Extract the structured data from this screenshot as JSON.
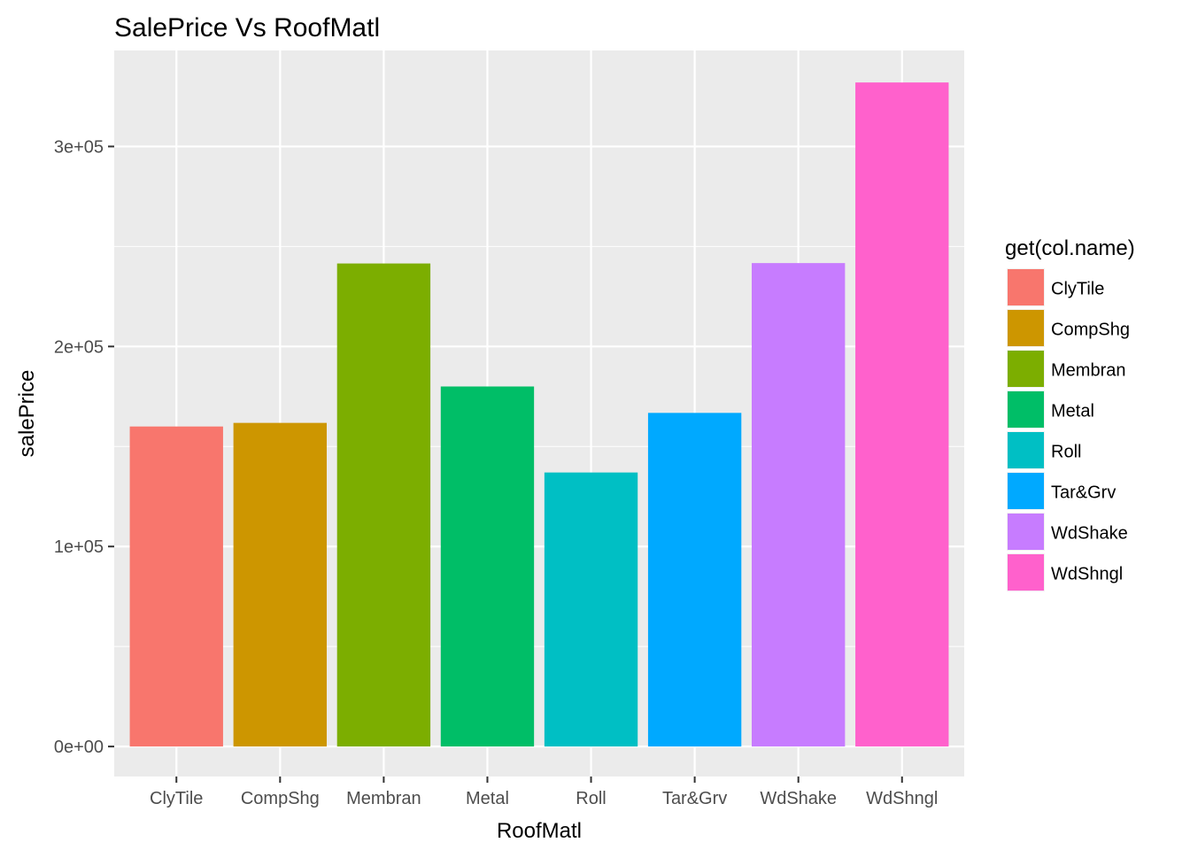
{
  "chart_data": {
    "type": "bar",
    "title": "SalePrice Vs RoofMatl",
    "xlabel": "RoofMatl",
    "ylabel": "salePrice",
    "categories": [
      "ClyTile",
      "CompShg",
      "Membran",
      "Metal",
      "Roll",
      "Tar&Grv",
      "WdShake",
      "WdShngl"
    ],
    "values": [
      160000,
      161800,
      241500,
      180000,
      137000,
      166800,
      241700,
      332000
    ],
    "colors": [
      "#F8766D",
      "#CD9600",
      "#7CAE00",
      "#00BE67",
      "#00BFC4",
      "#00A9FF",
      "#C77CFF",
      "#FF61CC"
    ],
    "ylim": [
      -15000,
      348000
    ],
    "yticks": [
      0,
      100000,
      200000,
      300000
    ],
    "ytick_labels": [
      "0e+00",
      "1e+05",
      "2e+05",
      "3e+05"
    ],
    "grid": true,
    "legend": {
      "title": "get(col.name)",
      "position": "right",
      "entries": [
        "ClyTile",
        "CompShg",
        "Membran",
        "Metal",
        "Roll",
        "Tar&Grv",
        "WdShake",
        "WdShngl"
      ]
    }
  }
}
